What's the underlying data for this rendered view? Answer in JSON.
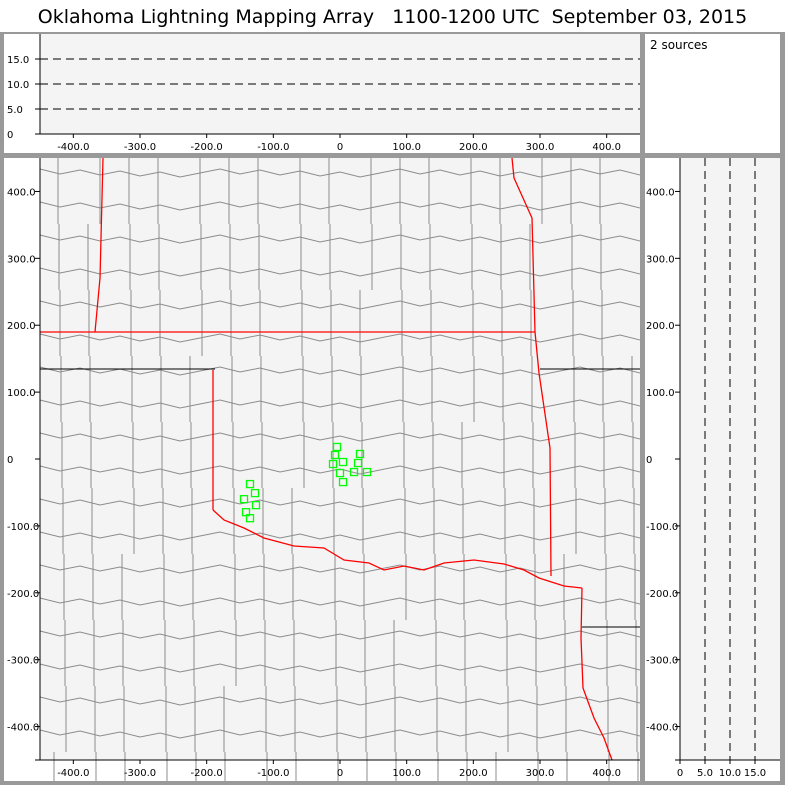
{
  "title": "Oklahoma Lightning Mapping Array   1100-1200 UTC  September 03, 2015",
  "legend": {
    "sources_text": "2 sources"
  },
  "colors": {
    "state_border": "#ff0000",
    "county_border": "#8c8c8c",
    "station": "#00ff00",
    "plot_bg": "#f4f4f4",
    "frame": "#999999"
  },
  "chart_data": [
    {
      "type": "scatter",
      "panel": "altitude-vs-east-west",
      "xlim": [
        -450,
        450
      ],
      "ylim": [
        0,
        20
      ],
      "xticks": [
        "-400.0",
        "-300.0",
        "-200.0",
        "-100.0",
        "0",
        "100.0",
        "200.0",
        "300.0",
        "400.0"
      ],
      "xtick_values": [
        -400,
        -300,
        -200,
        -100,
        0,
        100,
        200,
        300,
        400
      ],
      "yticks": [
        "0",
        "5.0",
        "10.0",
        "15.0"
      ],
      "ytick_values": [
        0,
        5,
        10,
        15
      ],
      "grid": "dashed horizontal at 5, 10, 15",
      "points": []
    },
    {
      "type": "scatter",
      "panel": "plan-view-map",
      "xlim": [
        -450,
        450
      ],
      "ylim": [
        -450,
        450
      ],
      "xticks": [
        "-400.0",
        "-300.0",
        "-200.0",
        "-100.0",
        "0",
        "100.0",
        "200.0",
        "300.0",
        "400.0"
      ],
      "xtick_values": [
        -400,
        -300,
        -200,
        -100,
        0,
        100,
        200,
        300,
        400
      ],
      "yticks": [
        "400.0",
        "300.0",
        "200.0",
        "100.0",
        "0",
        "-100.0",
        "-200.0",
        "-300.0",
        "-400.0"
      ],
      "ytick_values": [
        400,
        300,
        200,
        100,
        0,
        -100,
        -200,
        -300,
        -400
      ],
      "stations": [
        [
          -4.5,
          18
        ],
        [
          -7.5,
          6
        ],
        [
          -10.5,
          -7.5
        ],
        [
          4.5,
          -4.5
        ],
        [
          0,
          -21
        ],
        [
          4.5,
          -34.5
        ],
        [
          30,
          7.5
        ],
        [
          27,
          -6
        ],
        [
          21,
          -19.5
        ],
        [
          40.5,
          -19.5
        ],
        [
          -135,
          -37.5
        ],
        [
          -127.5,
          -51
        ],
        [
          -144,
          -60
        ],
        [
          -126,
          -69
        ],
        [
          -141,
          -79.5
        ],
        [
          -135,
          -88.5
        ]
      ]
    },
    {
      "type": "scatter",
      "panel": "north-south-vs-altitude",
      "xlim": [
        0,
        20
      ],
      "ylim": [
        -450,
        450
      ],
      "xticks": [
        "0",
        "5.0",
        "10.0",
        "15.0"
      ],
      "xtick_values": [
        0,
        5,
        10,
        15
      ],
      "yticks": [
        "400.0",
        "300.0",
        "200.0",
        "100.0",
        "0",
        "-100.0",
        "-200.0",
        "-300.0",
        "-400.0"
      ],
      "ytick_values": [
        400,
        300,
        200,
        100,
        0,
        -100,
        -200,
        -300,
        -400
      ],
      "grid": "dashed vertical at 5, 10, 15",
      "points": []
    }
  ]
}
